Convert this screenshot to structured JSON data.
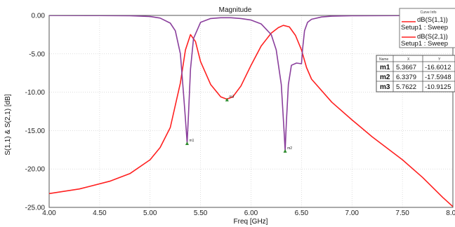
{
  "chart_data": {
    "type": "line",
    "title": "Magnitude",
    "xlabel": "Freq [GHz]",
    "ylabel": "S(1,1) & S(2,1) [dB]",
    "xlim": [
      4.0,
      8.0
    ],
    "ylim": [
      -25.0,
      0.0
    ],
    "x_ticks": [
      "4.00",
      "4.50",
      "5.00",
      "5.50",
      "6.00",
      "6.50",
      "7.00",
      "7.50",
      "8.00"
    ],
    "y_ticks": [
      "0.00",
      "-5.00",
      "-10.00",
      "-15.00",
      "-20.00",
      "-25.00"
    ],
    "grid": true,
    "legend": {
      "title": "Curve Info",
      "entries": [
        {
          "name": "dB(S(1,1))",
          "sub": "Setup1 : Sweep",
          "color": "#ff2020"
        },
        {
          "name": "dB(S(2,1))",
          "sub": "Setup1 : Sweep",
          "color": "#ff2020"
        }
      ]
    },
    "series": [
      {
        "name": "dB(S(1,1))",
        "color": "#ff2020",
        "x": [
          4.0,
          4.3,
          4.6,
          4.8,
          5.0,
          5.1,
          5.2,
          5.3,
          5.35,
          5.4,
          5.45,
          5.5,
          5.6,
          5.7,
          5.76,
          5.82,
          5.9,
          6.0,
          6.1,
          6.2,
          6.27,
          6.32,
          6.38,
          6.44,
          6.5,
          6.55,
          6.6,
          6.8,
          7.0,
          7.2,
          7.5,
          7.7,
          7.9,
          8.0
        ],
        "y": [
          -23.2,
          -22.6,
          -21.6,
          -20.6,
          -18.8,
          -17.2,
          -14.6,
          -8.8,
          -4.5,
          -2.5,
          -3.4,
          -6.0,
          -9.0,
          -10.6,
          -10.9,
          -10.6,
          -9.2,
          -6.5,
          -4.0,
          -2.3,
          -1.6,
          -1.3,
          -1.5,
          -2.6,
          -4.5,
          -6.8,
          -8.3,
          -11.3,
          -13.6,
          -15.8,
          -18.8,
          -21.1,
          -23.7,
          -24.9
        ]
      },
      {
        "name": "dB(S(2,1))",
        "color": "#8a3f9c",
        "x": [
          4.0,
          4.5,
          4.8,
          5.0,
          5.1,
          5.2,
          5.25,
          5.3,
          5.33,
          5.35,
          5.367,
          5.38,
          5.4,
          5.43,
          5.5,
          5.6,
          5.7,
          5.8,
          5.9,
          6.0,
          6.1,
          6.2,
          6.25,
          6.3,
          6.325,
          6.338,
          6.35,
          6.37,
          6.4,
          6.45,
          6.5,
          6.51,
          6.53,
          6.56,
          6.6,
          6.7,
          6.8,
          7.0,
          7.5,
          8.0
        ],
        "y": [
          -0.01,
          -0.02,
          -0.05,
          -0.15,
          -0.35,
          -1.0,
          -2.0,
          -5.0,
          -10.0,
          -13.5,
          -16.6,
          -13.0,
          -7.0,
          -3.0,
          -0.9,
          -0.4,
          -0.3,
          -0.3,
          -0.4,
          -0.6,
          -1.1,
          -2.5,
          -4.5,
          -9.0,
          -14.5,
          -17.59,
          -14.0,
          -9.0,
          -6.5,
          -6.2,
          -6.3,
          -4.5,
          -2.0,
          -0.9,
          -0.5,
          -0.2,
          -0.1,
          -0.05,
          -0.02,
          -0.01
        ]
      }
    ],
    "markers": [
      {
        "name": "m1",
        "x": 5.3667,
        "y": -16.6012,
        "color": "#2e8b2e"
      },
      {
        "name": "m2",
        "x": 6.3379,
        "y": -17.5948,
        "color": "#2e8b2e"
      },
      {
        "name": "m3",
        "x": 5.7622,
        "y": -10.9125,
        "color": "#2e8b2e"
      }
    ],
    "marker_table": {
      "headers": [
        "Name",
        "X",
        "Y"
      ],
      "rows": [
        [
          "m1",
          "5.3667",
          "-16.6012"
        ],
        [
          "m2",
          "6.3379",
          "-17.5948"
        ],
        [
          "m3",
          "5.7622",
          "-10.9125"
        ]
      ]
    }
  }
}
